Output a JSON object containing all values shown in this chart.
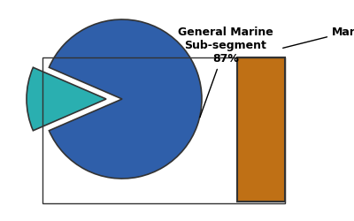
{
  "fig_w": 4.0,
  "fig_h": 2.5,
  "dpi": 100,
  "bg_color": "#ffffff",
  "big_slice_color": "#2f5faa",
  "small_slice_color": "#2aafb0",
  "pie_edge_color": "#333333",
  "rect_color": "#bf7015",
  "rect_edge_color": "#333333",
  "label1_text": "General Marine\nSub-segment\n87%",
  "label1_fontsize": 9,
  "label2_text": "Mari",
  "label2_fontsize": 9
}
